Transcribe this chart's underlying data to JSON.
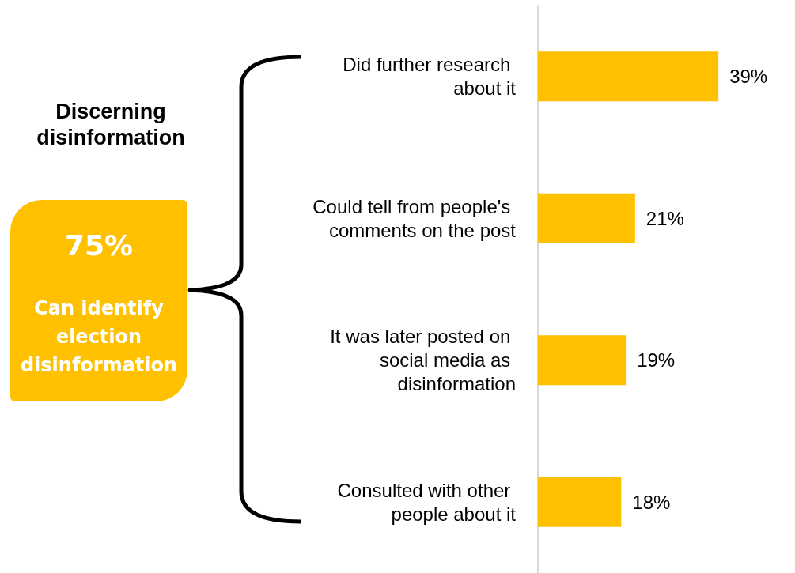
{
  "chart_data": {
    "type": "bar",
    "orientation": "horizontal",
    "categories": [
      "Did further research about it",
      "Could tell from people's comments on the post",
      "It was later posted on social media as disinformation",
      "Consulted with other people about it"
    ],
    "values": [
      39,
      21,
      19,
      18
    ],
    "value_labels": [
      "39%",
      "21%",
      "19%",
      "18%"
    ],
    "color": "#ffc000",
    "annotations": [
      "Discerning disinformation",
      "75%",
      "Can identify election disinformation"
    ]
  }
}
